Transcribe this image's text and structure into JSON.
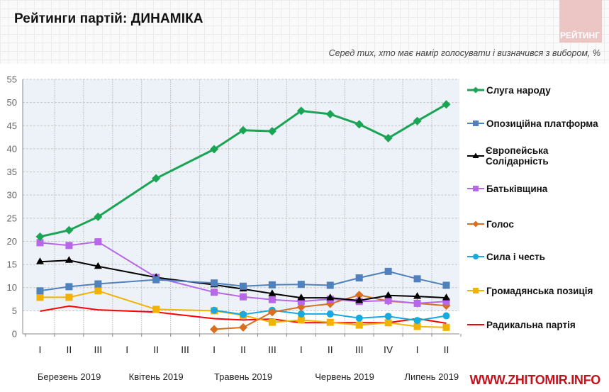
{
  "header": {
    "title": "Рейтинги партій: ДИНАМІКА",
    "subtitle": "Серед тих, хто має намір голосувати і визначився з вибором, %",
    "logo_text": "РЕЙТИНГ"
  },
  "watermark": "WWW.ZHITOMIR.INFO",
  "chart_data": {
    "type": "line",
    "title": "Рейтинги партій: ДИНАМІКА",
    "subtitle": "Серед тих, хто має намір голосувати і визначився з вибором, %",
    "xlabel": "",
    "ylabel": "",
    "ylim": [
      0,
      55
    ],
    "yticks": [
      0,
      5,
      10,
      15,
      20,
      25,
      30,
      35,
      40,
      45,
      50,
      55
    ],
    "grid": true,
    "legend": "right",
    "categories": [
      "I",
      "II",
      "III",
      "I",
      "II",
      "III",
      "I",
      "II",
      "III",
      "I",
      "II",
      "III",
      "IV",
      "I",
      "II"
    ],
    "month_groups": [
      {
        "label": "Березень 2019",
        "span": [
          0,
          2
        ]
      },
      {
        "label": "Квітень 2019",
        "span": [
          3,
          5
        ]
      },
      {
        "label": "Травень 2019",
        "span": [
          6,
          8
        ]
      },
      {
        "label": "Червень 2019",
        "span": [
          9,
          12
        ]
      },
      {
        "label": "Липень 2019",
        "span": [
          13,
          14
        ]
      }
    ],
    "series": [
      {
        "name": "Слуга народу",
        "color": "#1aa554",
        "marker": "diamond",
        "width": 3,
        "values": [
          21.0,
          22.4,
          25.3,
          null,
          33.6,
          null,
          39.9,
          44.0,
          43.8,
          48.2,
          47.5,
          45.3,
          42.3,
          46.0,
          49.6
        ]
      },
      {
        "name": "Опозиційна платформа",
        "color": "#4f81bd",
        "marker": "square",
        "width": 2,
        "values": [
          9.3,
          10.2,
          10.8,
          null,
          11.7,
          null,
          11.0,
          10.3,
          10.6,
          10.7,
          10.5,
          12.1,
          13.5,
          11.9,
          10.5
        ]
      },
      {
        "name": "Європейська Солідарність",
        "color": "#000000",
        "marker": "triangle",
        "width": 2,
        "values": [
          15.6,
          15.9,
          14.6,
          null,
          12.2,
          null,
          10.6,
          9.7,
          8.7,
          7.8,
          7.8,
          7.2,
          8.3,
          8.1,
          7.8
        ]
      },
      {
        "name": "Батьківщина",
        "color": "#b768e8",
        "marker": "square",
        "width": 2,
        "values": [
          19.7,
          19.1,
          19.9,
          null,
          12.2,
          null,
          9.0,
          8.0,
          7.4,
          7.0,
          7.5,
          7.0,
          7.2,
          6.6,
          7.0
        ]
      },
      {
        "name": "Голос",
        "color": "#d86f1f",
        "marker": "diamond",
        "width": 2,
        "values": [
          null,
          null,
          null,
          null,
          null,
          null,
          1.0,
          1.4,
          4.7,
          5.8,
          6.5,
          8.4,
          7.1,
          6.6,
          6.1
        ]
      },
      {
        "name": "Сила і честь",
        "color": "#18a9e1",
        "marker": "circle",
        "width": 2,
        "values": [
          null,
          null,
          null,
          null,
          null,
          null,
          5.1,
          4.2,
          5.1,
          4.3,
          4.3,
          3.4,
          3.8,
          2.9,
          3.9
        ]
      },
      {
        "name": "Громадянська позиція",
        "color": "#f2b300",
        "marker": "square",
        "width": 2,
        "values": [
          7.9,
          7.9,
          9.3,
          null,
          5.3,
          null,
          5.0,
          4.0,
          2.5,
          3.0,
          2.5,
          1.9,
          2.4,
          1.6,
          1.4
        ]
      },
      {
        "name": "Радикальна партія",
        "color": "#ff0000",
        "marker": "none",
        "width": 2,
        "values": [
          4.9,
          6.0,
          5.2,
          null,
          4.7,
          null,
          3.3,
          3.0,
          3.2,
          2.4,
          2.4,
          2.4,
          2.4,
          3.3,
          2.3
        ]
      }
    ]
  }
}
